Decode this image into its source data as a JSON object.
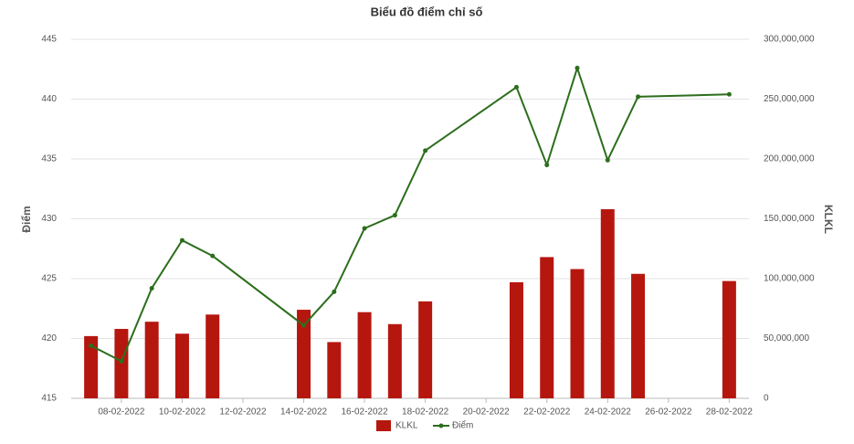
{
  "chart_data": {
    "type": "bar-line",
    "title": "Biểu đồ điểm chỉ số",
    "y_label": "Điểm",
    "y2_label": "KLKL",
    "x": [
      "07-02-2022",
      "08-02-2022",
      "09-02-2022",
      "10-02-2022",
      "11-02-2022",
      "14-02-2022",
      "15-02-2022",
      "16-02-2022",
      "17-02-2022",
      "18-02-2022",
      "21-02-2022",
      "22-02-2022",
      "23-02-2022",
      "24-02-2022",
      "25-02-2022",
      "28-02-2022"
    ],
    "xticks": [
      "08-02-2022",
      "10-02-2022",
      "12-02-2022",
      "14-02-2022",
      "16-02-2022",
      "18-02-2022",
      "20-02-2022",
      "22-02-2022",
      "24-02-2022",
      "26-02-2022",
      "28-02-2022"
    ],
    "series": [
      {
        "name": "KLKL",
        "type": "bar",
        "axis": "y2",
        "color": "#b5170f",
        "values": [
          52000000,
          58000000,
          64000000,
          54000000,
          70000000,
          74000000,
          47000000,
          72000000,
          62000000,
          81000000,
          97000000,
          118000000,
          108000000,
          158000000,
          104000000,
          98000000
        ]
      },
      {
        "name": "Điểm",
        "type": "line",
        "color": "#2c6e1c",
        "values": [
          419.4,
          418.1,
          424.2,
          428.2,
          426.9,
          421.1,
          423.9,
          429.2,
          430.3,
          435.7,
          441.0,
          434.5,
          442.6,
          434.9,
          440.2,
          440.4
        ]
      }
    ],
    "ylim": [
      415,
      445
    ],
    "yticks": [
      415,
      420,
      425,
      430,
      435,
      440,
      445
    ],
    "y2lim": [
      0,
      300000000
    ],
    "y2ticks": [
      0,
      {
        "value": 50000000,
        "label": "50,000,000"
      },
      {
        "value": 100000000,
        "label": "100,000,000"
      },
      {
        "value": 150000000,
        "label": "150,000,000"
      },
      {
        "value": 200000000,
        "label": "200,000,000"
      },
      {
        "value": 250000000,
        "label": "250,000,000"
      },
      {
        "value": 300000000,
        "label": "300,000,000"
      }
    ],
    "grid": true,
    "legend": "bottom"
  }
}
